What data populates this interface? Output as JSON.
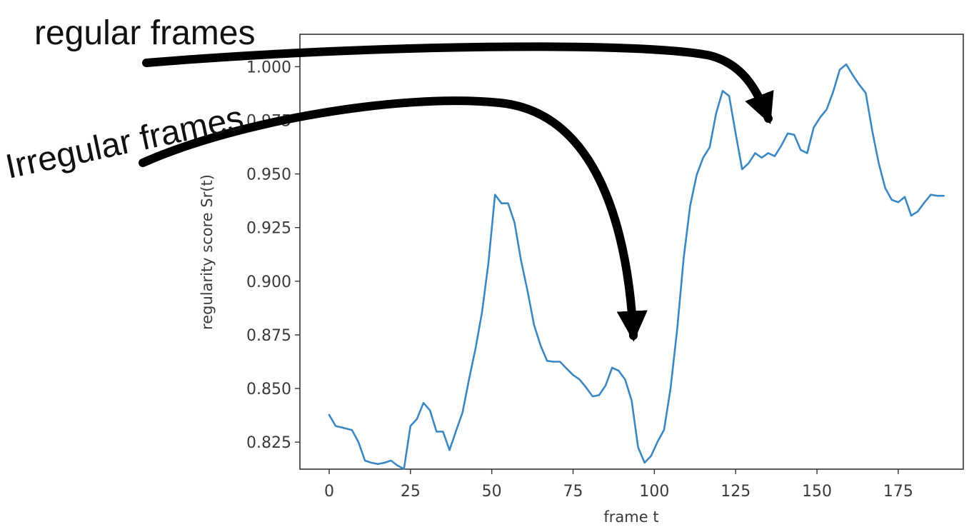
{
  "chart_data": {
    "type": "line",
    "title": "",
    "xlabel": "frame t",
    "ylabel": "regularity score Sr(t)",
    "xlim": [
      -9,
      195
    ],
    "ylim": [
      0.8124,
      1.0151
    ],
    "xticks": [
      0,
      25,
      50,
      75,
      100,
      125,
      150,
      175
    ],
    "yticks": [
      0.825,
      0.85,
      0.875,
      0.9,
      0.925,
      0.95,
      0.975,
      1.0
    ],
    "ytick_labels": [
      "0.825",
      "0.850",
      "0.875",
      "0.900",
      "0.925",
      "0.950",
      "0.975",
      "1.000"
    ],
    "grid": false,
    "legend": "none",
    "line_color": "#3a87c4",
    "series": [
      {
        "x": [
          0,
          2,
          4,
          7,
          9,
          11,
          13,
          15,
          17,
          19,
          21,
          23,
          25,
          27,
          29,
          31,
          33,
          35,
          37,
          39,
          41,
          43,
          45,
          47,
          49,
          51,
          53,
          55,
          57,
          59,
          61,
          63,
          65,
          67,
          69,
          71,
          73,
          75,
          77,
          79,
          81,
          83,
          85,
          87,
          89,
          91,
          93,
          95,
          97,
          99,
          101,
          103,
          105,
          107,
          109,
          111,
          113,
          115,
          117,
          119,
          121,
          123,
          125,
          127,
          129,
          131,
          133,
          135,
          137,
          139,
          141,
          143,
          145,
          147,
          149,
          151,
          153,
          155,
          157,
          159,
          161,
          163,
          165,
          167,
          169,
          171,
          173,
          175,
          177,
          179,
          181,
          183,
          185,
          187,
          189
        ],
        "y": [
          0.8377,
          0.8325,
          0.8318,
          0.8306,
          0.825,
          0.8164,
          0.8154,
          0.8148,
          0.8154,
          0.8164,
          0.8141,
          0.8125,
          0.8325,
          0.8358,
          0.8433,
          0.8398,
          0.8299,
          0.8299,
          0.8213,
          0.8302,
          0.8388,
          0.8542,
          0.8686,
          0.8855,
          0.9088,
          0.9403,
          0.9363,
          0.9363,
          0.9273,
          0.9096,
          0.8954,
          0.8796,
          0.8701,
          0.8629,
          0.8625,
          0.8625,
          0.8593,
          0.8563,
          0.8542,
          0.8505,
          0.8463,
          0.8469,
          0.8514,
          0.8597,
          0.8583,
          0.8542,
          0.8445,
          0.8226,
          0.8154,
          0.8186,
          0.8252,
          0.8308,
          0.8502,
          0.8775,
          0.9107,
          0.9352,
          0.9495,
          0.9576,
          0.9624,
          0.9783,
          0.9887,
          0.9863,
          0.9689,
          0.9522,
          0.955,
          0.9597,
          0.9576,
          0.9597,
          0.9583,
          0.9631,
          0.9689,
          0.9683,
          0.9612,
          0.9597,
          0.9716,
          0.9764,
          0.9801,
          0.9883,
          0.9986,
          1.0011,
          0.9961,
          0.9916,
          0.9877,
          0.9701,
          0.955,
          0.9434,
          0.9379,
          0.9368,
          0.9393,
          0.9306,
          0.9325,
          0.9366,
          0.9403,
          0.9398,
          0.9398
        ]
      }
    ]
  },
  "annotations": {
    "regular_label": "regular frames",
    "irregular_label": "Irregular frames"
  }
}
